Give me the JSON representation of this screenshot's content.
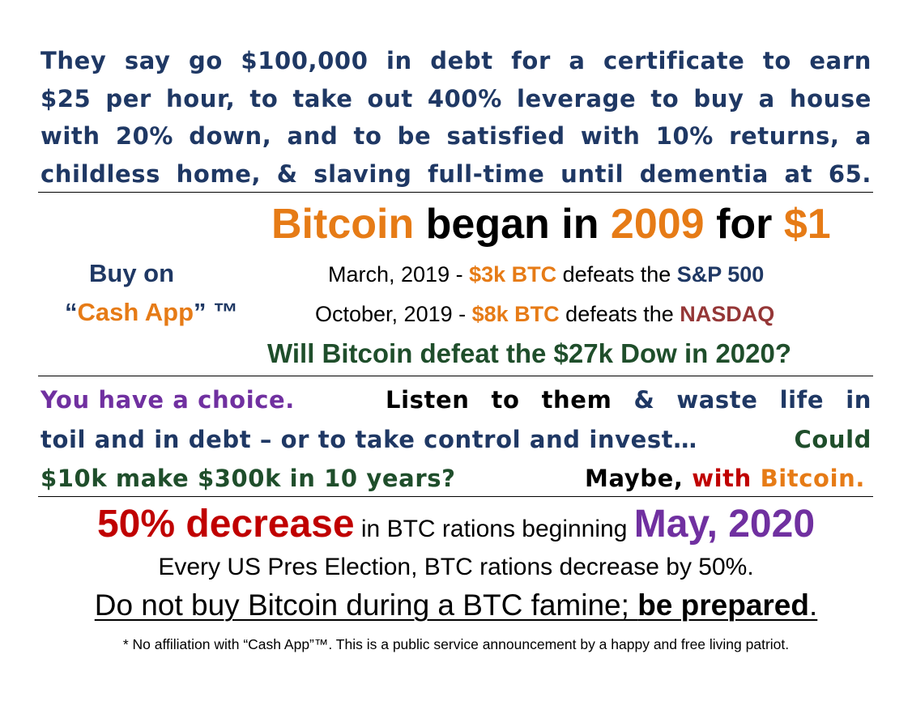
{
  "intro": {
    "line1": "They say go $100,000 in debt for a certificate to earn",
    "line2": "$25 per hour, to take out 400% leverage to buy a house",
    "line3": "with 20% down, and to be satisfied with 10% returns, a",
    "line4": "childless home, & slaving full-time until dementia at 65."
  },
  "headline": {
    "w1": "Bitcoin",
    "w2": "began in",
    "w3": "2009",
    "w4": "for",
    "w5": "$1"
  },
  "buy": {
    "line1": "Buy on",
    "open_quote": "“",
    "app": "Cash App",
    "close": "” ™"
  },
  "facts": [
    {
      "date": "March, 2019 - ",
      "btc": "$3k BTC",
      "mid": " defeats the ",
      "index": "S&P 500"
    },
    {
      "date": "October, 2019 - ",
      "btc": "$8k BTC",
      "mid": " defeats the ",
      "index": "NASDAQ"
    }
  ],
  "question": "Will Bitcoin defeat the $27k Dow in 2020?",
  "choice": {
    "a": "You have a choice.",
    "b1": "Listen",
    "b2": "to",
    "b3": "them",
    "b4": "&",
    "b5": "waste",
    "b6": "life",
    "b7": "in",
    "l2a": "toil and in debt – or to take control and invest…",
    "l2b": "Could",
    "l3a": "$10k make $300k in 10 years?",
    "l3b": "Maybe,",
    "l3c": "with",
    "l3d": "Bitcoin."
  },
  "halving": {
    "big": "50% decrease",
    "mid": " in BTC rations beginning ",
    "date": "May, 2020"
  },
  "every": "Every US Pres Election, BTC rations decrease by 50%.",
  "donot": {
    "a": "Do not buy Bitcoin during a BTC famine; ",
    "b": "be prepared",
    "c": "."
  },
  "footnote": "* No affiliation with “Cash App”™. This is a public service announcement by a happy and free living patriot.",
  "colors": {
    "navy": "#1f3864",
    "orange": "#e67b16",
    "green": "#1f4e2b",
    "purple": "#7030a0",
    "red": "#c00000",
    "darkred": "#953737"
  }
}
